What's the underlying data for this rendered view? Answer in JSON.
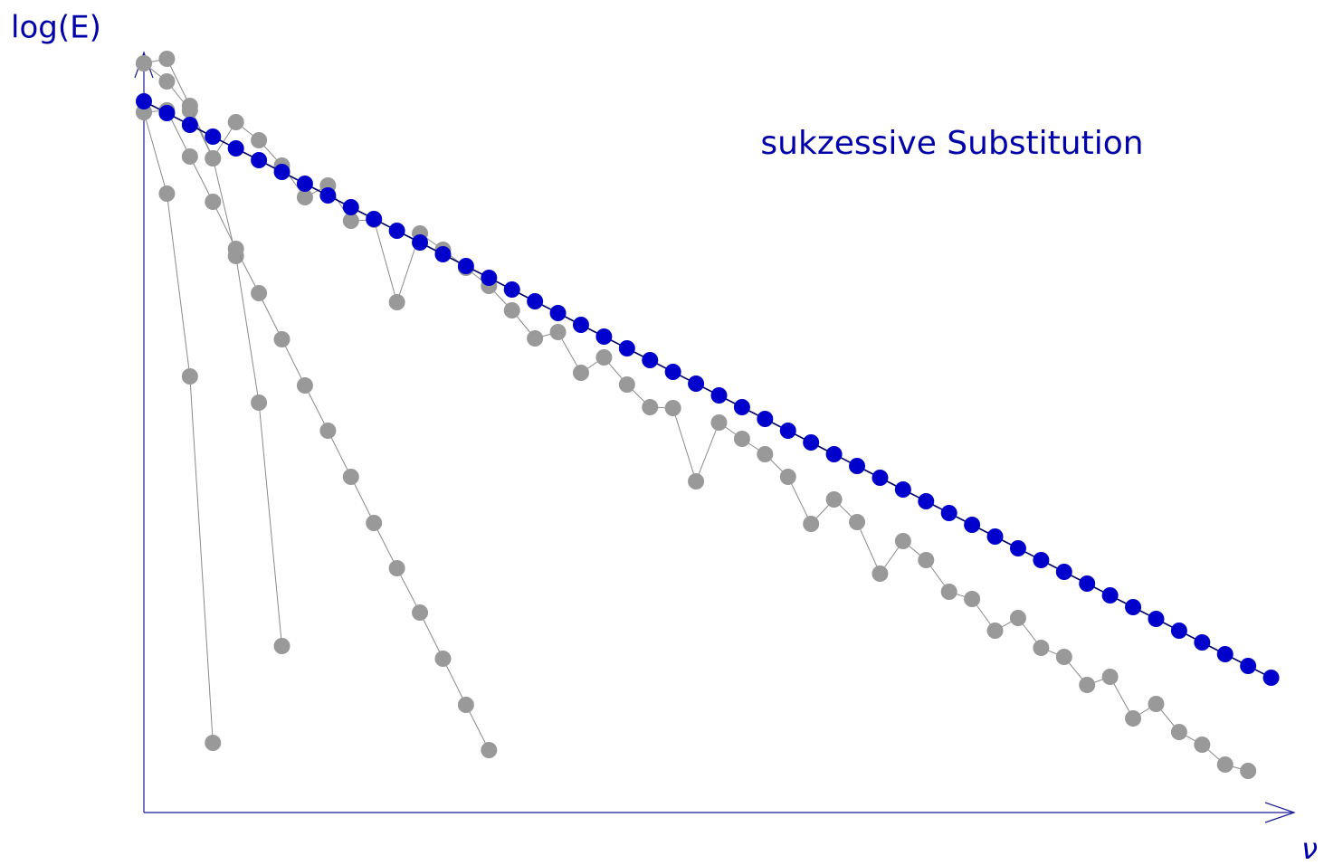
{
  "chart_data": {
    "type": "line",
    "y_label": "log(E)",
    "x_label": "ν",
    "annotation": "sukzessive Substitution",
    "xlim": [
      0,
      50
    ],
    "ylim": [
      0,
      84
    ],
    "x": [
      0,
      1,
      2,
      3,
      4,
      5,
      6,
      7,
      8,
      9,
      10,
      11,
      12,
      13,
      14,
      15,
      16,
      17,
      18,
      19,
      20,
      21,
      22,
      23,
      24,
      25,
      26,
      27,
      28,
      29,
      30,
      31,
      32,
      33,
      34,
      35,
      36,
      37,
      38,
      39,
      40,
      41,
      42,
      43,
      44,
      45,
      46,
      47,
      48,
      49
    ],
    "series": [
      {
        "color": "#999999",
        "values": [
          77.4,
          68.4,
          48.2,
          7.7,
          null,
          null,
          null,
          null,
          null,
          null,
          null,
          null,
          null,
          null,
          null,
          null,
          null,
          null,
          null,
          null,
          null,
          null,
          null,
          null,
          null,
          null,
          null,
          null,
          null,
          null,
          null,
          null,
          null,
          null,
          null,
          null,
          null,
          null,
          null,
          null,
          null,
          null,
          null,
          null,
          null,
          null,
          null,
          null,
          null,
          null
        ]
      },
      {
        "color": "#999999",
        "values": [
          82.8,
          80.8,
          77.6,
          72.3,
          61.5,
          45.3,
          18.4,
          null,
          null,
          null,
          null,
          null,
          null,
          null,
          null,
          null,
          null,
          null,
          null,
          null,
          null,
          null,
          null,
          null,
          null,
          null,
          null,
          null,
          null,
          null,
          null,
          null,
          null,
          null,
          null,
          null,
          null,
          null,
          null,
          null,
          null,
          null,
          null,
          null,
          null,
          null,
          null,
          null,
          null,
          null
        ]
      },
      {
        "color": "#999999",
        "values": [
          77.4,
          77.6,
          72.5,
          67.5,
          62.3,
          57.4,
          52.3,
          47.2,
          42.2,
          37.1,
          32.0,
          27.0,
          22.1,
          17.0,
          11.9,
          6.9,
          null,
          null,
          null,
          null,
          null,
          null,
          null,
          null,
          null,
          null,
          null,
          null,
          null,
          null,
          null,
          null,
          null,
          null,
          null,
          null,
          null,
          null,
          null,
          null,
          null,
          null,
          null,
          null,
          null,
          null,
          null,
          null,
          null,
          null
        ]
      },
      {
        "color": "#999999",
        "values": [
          82.8,
          83.3,
          78.1,
          72.3,
          76.3,
          74.3,
          71.5,
          68.0,
          69.3,
          65.4,
          65.5,
          56.4,
          64.0,
          62.2,
          60.2,
          58.2,
          55.5,
          52.4,
          53.1,
          48.6,
          50.3,
          47.3,
          44.8,
          44.7,
          36.6,
          43.1,
          41.3,
          39.6,
          37.1,
          31.9,
          34.6,
          32.1,
          26.4,
          30.0,
          27.9,
          24.4,
          23.6,
          20.1,
          21.5,
          18.2,
          17.2,
          14.1,
          15.0,
          10.4,
          12.0,
          8.9,
          7.5,
          5.3,
          4.6,
          null
        ]
      },
      {
        "color": "#0000cc",
        "values": [
          78.6,
          77.3,
          76.0,
          74.7,
          73.4,
          72.1,
          70.8,
          69.5,
          68.2,
          66.9,
          65.6,
          64.3,
          63.0,
          61.7,
          60.4,
          59.1,
          57.8,
          56.5,
          55.2,
          53.9,
          52.6,
          51.3,
          50.0,
          48.7,
          47.4,
          46.1,
          44.8,
          43.5,
          42.2,
          40.9,
          39.6,
          38.3,
          37.0,
          35.7,
          34.4,
          33.1,
          31.8,
          30.5,
          29.2,
          27.9,
          26.6,
          25.3,
          24.0,
          22.7,
          21.4,
          20.1,
          18.8,
          17.5,
          16.2,
          14.9
        ]
      }
    ]
  }
}
